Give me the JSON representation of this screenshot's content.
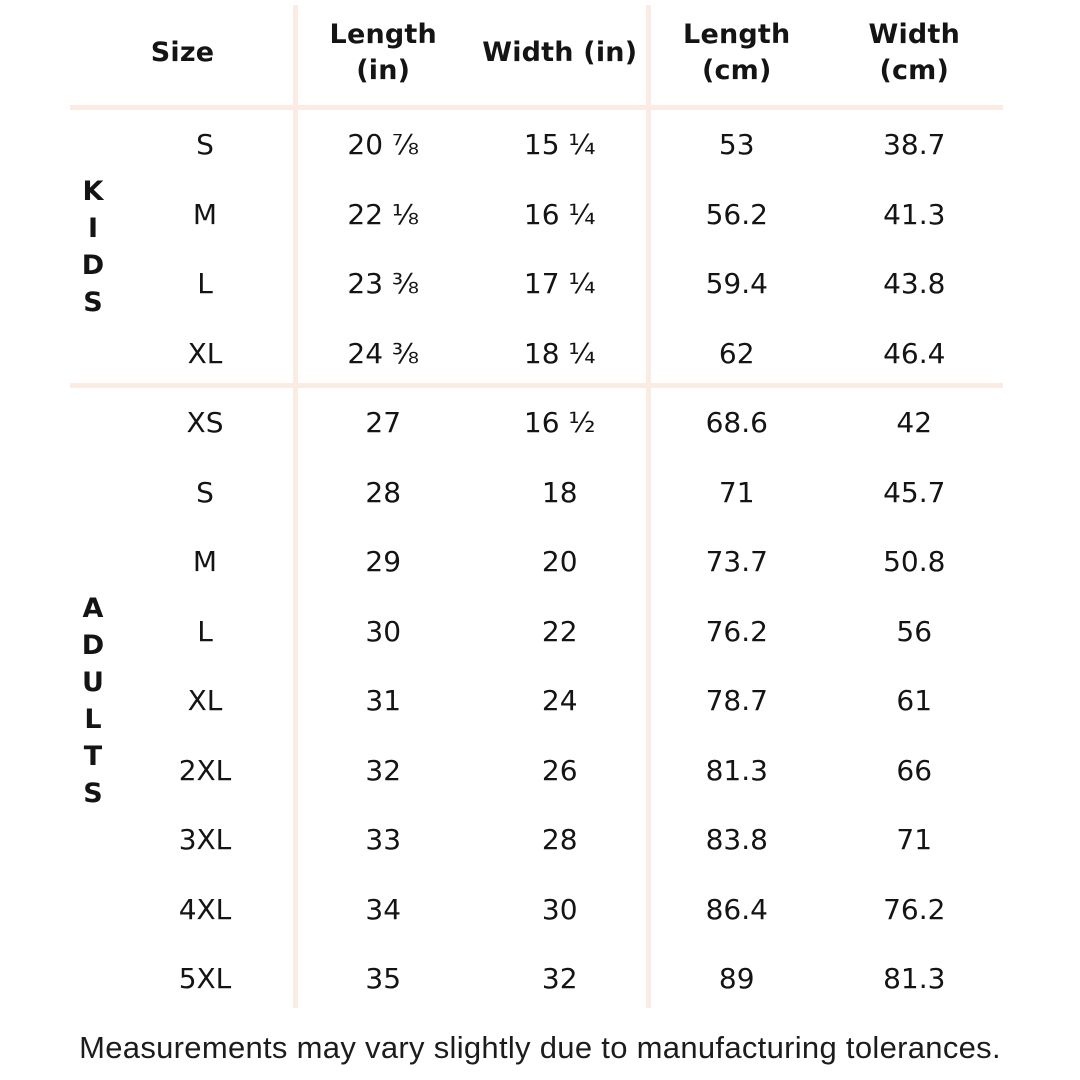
{
  "chart_data": {
    "type": "table",
    "headers": {
      "size": "Size",
      "length_in": "Length\n(in)",
      "width_in": "Width (in)",
      "length_cm": "Length\n(cm)",
      "width_cm": "Width\n(cm)"
    },
    "sections": [
      {
        "group": "KIDS",
        "rows": [
          {
            "size": "S",
            "length_in": "20 ⅞",
            "width_in": "15 ¼",
            "length_cm": "53",
            "width_cm": "38.7"
          },
          {
            "size": "M",
            "length_in": "22 ⅛",
            "width_in": "16 ¼",
            "length_cm": "56.2",
            "width_cm": "41.3"
          },
          {
            "size": "L",
            "length_in": "23 ⅜",
            "width_in": "17 ¼",
            "length_cm": "59.4",
            "width_cm": "43.8"
          },
          {
            "size": "XL",
            "length_in": "24 ⅜",
            "width_in": "18 ¼",
            "length_cm": "62",
            "width_cm": "46.4"
          }
        ]
      },
      {
        "group": "ADULTS",
        "rows": [
          {
            "size": "XS",
            "length_in": "27",
            "width_in": "16 ½",
            "length_cm": "68.6",
            "width_cm": "42"
          },
          {
            "size": "S",
            "length_in": "28",
            "width_in": "18",
            "length_cm": "71",
            "width_cm": "45.7"
          },
          {
            "size": "M",
            "length_in": "29",
            "width_in": "20",
            "length_cm": "73.7",
            "width_cm": "50.8"
          },
          {
            "size": "L",
            "length_in": "30",
            "width_in": "22",
            "length_cm": "76.2",
            "width_cm": "56"
          },
          {
            "size": "XL",
            "length_in": "31",
            "width_in": "24",
            "length_cm": "78.7",
            "width_cm": "61"
          },
          {
            "size": "2XL",
            "length_in": "32",
            "width_in": "26",
            "length_cm": "81.3",
            "width_cm": "66"
          },
          {
            "size": "3XL",
            "length_in": "33",
            "width_in": "28",
            "length_cm": "83.8",
            "width_cm": "71"
          },
          {
            "size": "4XL",
            "length_in": "34",
            "width_in": "30",
            "length_cm": "86.4",
            "width_cm": "76.2"
          },
          {
            "size": "5XL",
            "length_in": "35",
            "width_in": "32",
            "length_cm": "89",
            "width_cm": "81.3"
          }
        ]
      }
    ],
    "footnote": "Measurements may vary slightly due to manufacturing tolerances."
  },
  "colors": {
    "divider": "#fbece3",
    "text": "#141414",
    "background": "#ffffff"
  }
}
